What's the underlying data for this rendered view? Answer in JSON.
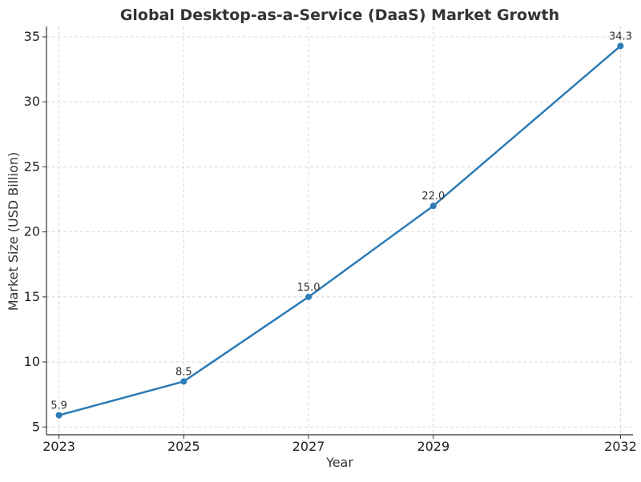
{
  "chart_data": {
    "type": "line",
    "title": "Global Desktop-as-a-Service (DaaS) Market Growth",
    "xlabel": "Year",
    "ylabel": "Market Size (USD Billion)",
    "x": [
      2023,
      2025,
      2027,
      2029,
      2032
    ],
    "series": [
      {
        "values": [
          5.9,
          8.5,
          15.0,
          22.0,
          34.3
        ]
      }
    ],
    "data_labels": [
      "5.9",
      "8.5",
      "15.0",
      "22.0",
      "34.3"
    ],
    "xticks": [
      "2023",
      "2025",
      "2027",
      "2029",
      "2032"
    ],
    "yticks": [
      "5",
      "10",
      "15",
      "20",
      "25",
      "30",
      "35"
    ],
    "xlim": [
      2022.8,
      2032.2
    ],
    "ylim": [
      4.4,
      35.8
    ],
    "grid": true,
    "line_color": "#2c7bb6",
    "marker": "circle"
  }
}
